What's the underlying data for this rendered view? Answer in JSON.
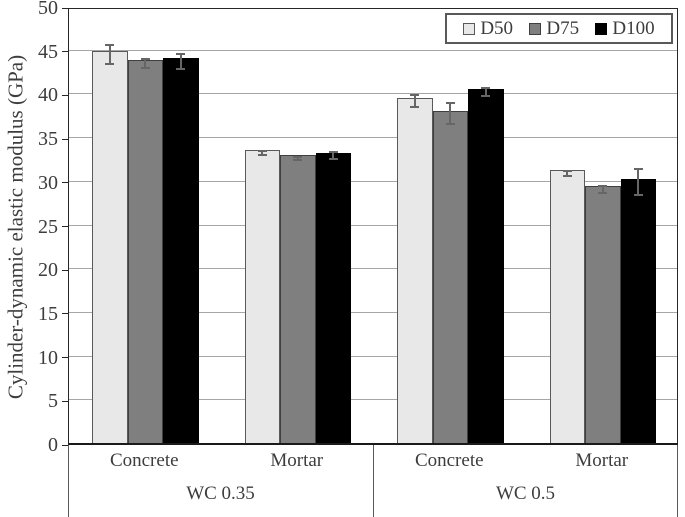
{
  "chart_data": {
    "type": "bar",
    "title": "",
    "xlabel": "",
    "ylabel": "Cylinder-dynamic elastic modulus (GPa)",
    "ylim": [
      0,
      50
    ],
    "ytick_step": 5,
    "yticks": [
      0,
      5,
      10,
      15,
      20,
      25,
      30,
      35,
      40,
      45,
      50
    ],
    "grid": "horizontal",
    "legend_position": "top-right-inside",
    "categories": [
      "Concrete",
      "Mortar",
      "Concrete",
      "Mortar"
    ],
    "groups": [
      {
        "label": "WC 0.35",
        "span": [
          0,
          1
        ]
      },
      {
        "label": "WC 0.5",
        "span": [
          2,
          3
        ]
      }
    ],
    "series": [
      {
        "name": "D50",
        "fill": "#e8e8e8",
        "edge": "#595959",
        "values": [
          44.8,
          33.5,
          39.5,
          31.2
        ],
        "errors": [
          1.1,
          0.2,
          0.7,
          0.3
        ]
      },
      {
        "name": "D75",
        "fill": "#7f7f7f",
        "edge": "#3f3f3f",
        "values": [
          43.8,
          32.9,
          38.0,
          29.4
        ],
        "errors": [
          0.5,
          0.2,
          1.2,
          0.4
        ]
      },
      {
        "name": "D100",
        "fill": "#000000",
        "edge": "#000000",
        "values": [
          44.0,
          33.2,
          40.5,
          30.2
        ],
        "errors": [
          0.9,
          0.4,
          0.5,
          1.5
        ]
      }
    ]
  },
  "colors": {
    "gridline": "#a6a6a6",
    "axis": "#262626",
    "text": "#3d3d3d",
    "error_bar": "#666666",
    "legend_border": "#595959",
    "background": "#ffffff"
  }
}
